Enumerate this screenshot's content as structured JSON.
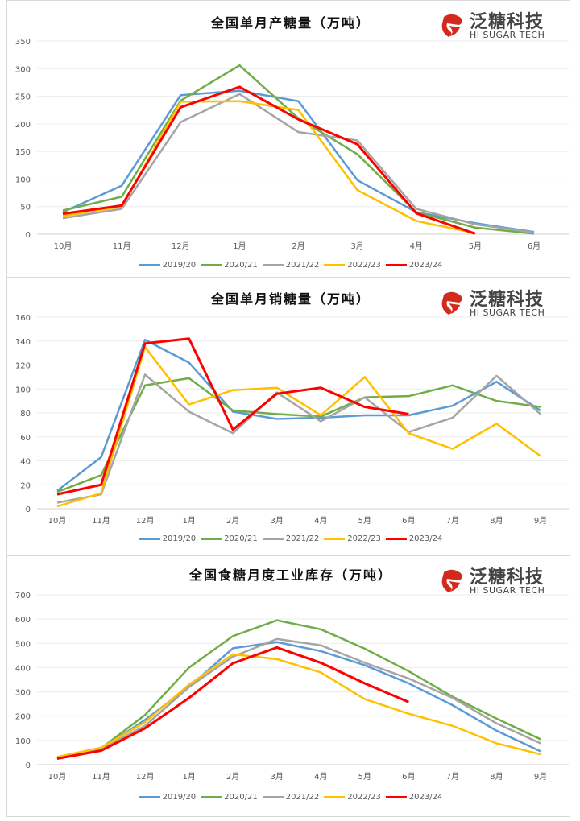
{
  "logo": {
    "cn": "泛糖科技",
    "en": "HI SUGAR TECH"
  },
  "colors": {
    "2019/20": "#5B9BD5",
    "2020/21": "#70AD47",
    "2021/22": "#A5A5A5",
    "2022/23": "#FFC000",
    "2023/24": "#FF0000"
  },
  "chart_data": [
    {
      "type": "line",
      "title": "全国单月产糖量（万吨）",
      "xlabel": "",
      "ylabel": "",
      "ylim": [
        0,
        350
      ],
      "yticks": [
        0,
        50,
        100,
        150,
        200,
        250,
        300,
        350
      ],
      "grid": true,
      "legend": "bottom",
      "categories": [
        "10月",
        "11月",
        "12月",
        "1月",
        "2月",
        "3月",
        "4月",
        "5月",
        "6月"
      ],
      "series": [
        {
          "name": "2019/20",
          "values": [
            40,
            88,
            252,
            260,
            241,
            98,
            40,
            20,
            4
          ]
        },
        {
          "name": "2020/21",
          "values": [
            43,
            68,
            242,
            306,
            210,
            145,
            40,
            12,
            1
          ]
        },
        {
          "name": "2021/22",
          "values": [
            29,
            46,
            203,
            254,
            185,
            170,
            46,
            18,
            3
          ]
        },
        {
          "name": "2022/23",
          "values": [
            33,
            50,
            240,
            241,
            225,
            80,
            24,
            2,
            null
          ]
        },
        {
          "name": "2023/24",
          "values": [
            37,
            52,
            230,
            267,
            208,
            163,
            38,
            1,
            null
          ]
        }
      ]
    },
    {
      "type": "line",
      "title": "全国单月销糖量（万吨）",
      "xlabel": "",
      "ylabel": "",
      "ylim": [
        0,
        160
      ],
      "yticks": [
        0,
        20,
        40,
        60,
        80,
        100,
        120,
        140,
        160
      ],
      "grid": true,
      "legend": "bottom",
      "categories": [
        "10月",
        "11月",
        "12月",
        "1月",
        "2月",
        "3月",
        "4月",
        "5月",
        "6月",
        "7月",
        "8月",
        "9月"
      ],
      "series": [
        {
          "name": "2019/20",
          "values": [
            15,
            43,
            141,
            122,
            81,
            75,
            76,
            78,
            78,
            86,
            106,
            82
          ]
        },
        {
          "name": "2020/21",
          "values": [
            14,
            28,
            103,
            109,
            82,
            79,
            77,
            93,
            94,
            103,
            90,
            85
          ]
        },
        {
          "name": "2021/22",
          "values": [
            5,
            12,
            112,
            81,
            63,
            97,
            73,
            93,
            64,
            76,
            111,
            79
          ]
        },
        {
          "name": "2022/23",
          "values": [
            2,
            13,
            135,
            87,
            99,
            101,
            78,
            110,
            63,
            50,
            71,
            44
          ]
        },
        {
          "name": "2023/24",
          "values": [
            12,
            20,
            138,
            142,
            66,
            96,
            101,
            85,
            79,
            null,
            null,
            null
          ]
        }
      ]
    },
    {
      "type": "line",
      "title": "全国食糖月度工业库存（万吨）",
      "xlabel": "",
      "ylabel": "",
      "ylim": [
        0,
        700
      ],
      "yticks": [
        0,
        100,
        200,
        300,
        400,
        500,
        600,
        700
      ],
      "grid": true,
      "legend": "bottom",
      "categories": [
        "10月",
        "11月",
        "12月",
        "1月",
        "2月",
        "3月",
        "4月",
        "5月",
        "6月",
        "7月",
        "8月",
        "9月"
      ],
      "series": [
        {
          "name": "2019/20",
          "values": [
            28,
            65,
            185,
            320,
            480,
            505,
            468,
            410,
            335,
            245,
            140,
            55
          ]
        },
        {
          "name": "2020/21",
          "values": [
            30,
            68,
            205,
            400,
            530,
            595,
            558,
            478,
            385,
            280,
            190,
            105
          ]
        },
        {
          "name": "2021/22",
          "values": [
            28,
            65,
            160,
            320,
            445,
            518,
            492,
            420,
            355,
            275,
            170,
            88
          ]
        },
        {
          "name": "2022/23",
          "values": [
            32,
            70,
            175,
            330,
            455,
            435,
            380,
            270,
            210,
            160,
            88,
            43
          ]
        },
        {
          "name": "2023/24",
          "values": [
            25,
            58,
            150,
            275,
            418,
            483,
            420,
            335,
            258,
            null,
            null,
            null
          ]
        }
      ]
    }
  ]
}
